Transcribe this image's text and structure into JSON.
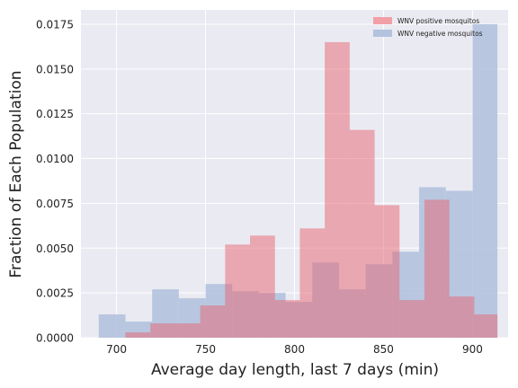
{
  "chart_data": {
    "type": "bar",
    "subtype": "overlapping-histogram",
    "xlabel": "Average day length, last 7 days (min)",
    "ylabel": "Fraction of Each Population",
    "xlim": [
      680,
      920
    ],
    "ylim": [
      0,
      0.0183
    ],
    "xticks": [
      700,
      750,
      800,
      850,
      900
    ],
    "yticks": [
      0.0,
      0.0025,
      0.005,
      0.0075,
      0.01,
      0.0125,
      0.015,
      0.0175
    ],
    "xtick_labels": [
      "700",
      "750",
      "800",
      "850",
      "900"
    ],
    "ytick_labels": [
      "0.0000",
      "0.0025",
      "0.0050",
      "0.0075",
      "0.0100",
      "0.0125",
      "0.0150",
      "0.0175"
    ],
    "grid": true,
    "legend_position": "top-right",
    "series": [
      {
        "name": "WNV positive mosquitos",
        "color": "#f0a0a6",
        "bin_edges": [
          705,
          719,
          733,
          747,
          761,
          775,
          789,
          803,
          817,
          831,
          845,
          859,
          873,
          887,
          901,
          914
        ],
        "values": [
          0.0003,
          0.0008,
          0.0008,
          0.0018,
          0.0052,
          0.0057,
          0.0021,
          0.0061,
          0.0165,
          0.0116,
          0.0074,
          0.0021,
          0.0077,
          0.0023,
          0.0013
        ]
      },
      {
        "name": "WNV negative mosquitos",
        "color": "#b3c2de",
        "bin_edges": [
          690,
          705,
          720,
          735,
          750,
          765,
          780,
          795,
          810,
          825,
          840,
          855,
          870,
          885,
          900,
          914
        ],
        "values": [
          0.0013,
          0.0009,
          0.0027,
          0.0022,
          0.003,
          0.0026,
          0.0025,
          0.002,
          0.0042,
          0.0027,
          0.0041,
          0.0048,
          0.0084,
          0.0082,
          0.0175
        ]
      }
    ]
  }
}
